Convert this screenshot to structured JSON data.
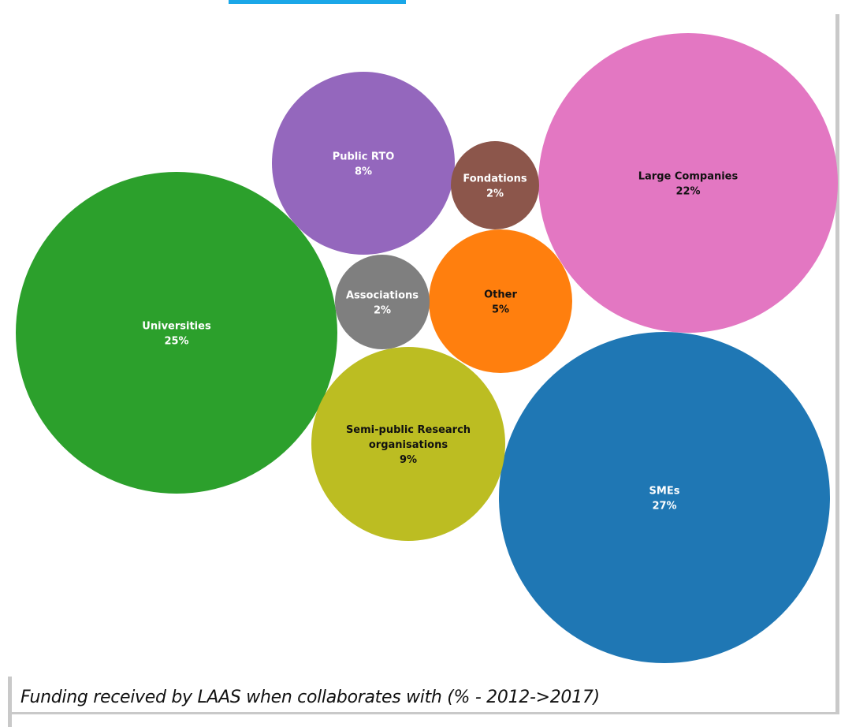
{
  "caption": "Funding received by LAAS when collaborates with  (% - 2012->2017)",
  "chart_data": {
    "type": "bubble",
    "title": "",
    "series": [
      {
        "name": "SMEs",
        "label": [
          "SMEs"
        ],
        "value": "27%",
        "share": 27,
        "color": "#1f77b4",
        "text_color": "#ffffff"
      },
      {
        "name": "Universities",
        "label": [
          "Universities"
        ],
        "value": "25%",
        "share": 25,
        "color": "#2ca02c",
        "text_color": "#ffffff"
      },
      {
        "name": "Large Companies",
        "label": [
          "Large Companies"
        ],
        "value": "22%",
        "share": 22,
        "color": "#e377c2",
        "text_color": "#111111"
      },
      {
        "name": "Semi-public Research organisations",
        "label": [
          "Semi-public Research",
          "organisations"
        ],
        "value": "9%",
        "share": 9,
        "color": "#bcbd22",
        "text_color": "#111111"
      },
      {
        "name": "Public RTO",
        "label": [
          "Public RTO"
        ],
        "value": "8%",
        "share": 8,
        "color": "#9467bd",
        "text_color": "#ffffff"
      },
      {
        "name": "Other",
        "label": [
          "Other"
        ],
        "value": "5%",
        "share": 5,
        "color": "#ff7f0e",
        "text_color": "#111111"
      },
      {
        "name": "Associations",
        "label": [
          "Associations"
        ],
        "value": "2%",
        "share": 2,
        "color": "#7f7f7f",
        "text_color": "#ffffff"
      },
      {
        "name": "Fondations",
        "label": [
          "Fondations"
        ],
        "value": "2%",
        "share": 2,
        "color": "#8c564b",
        "text_color": "#ffffff"
      }
    ]
  }
}
